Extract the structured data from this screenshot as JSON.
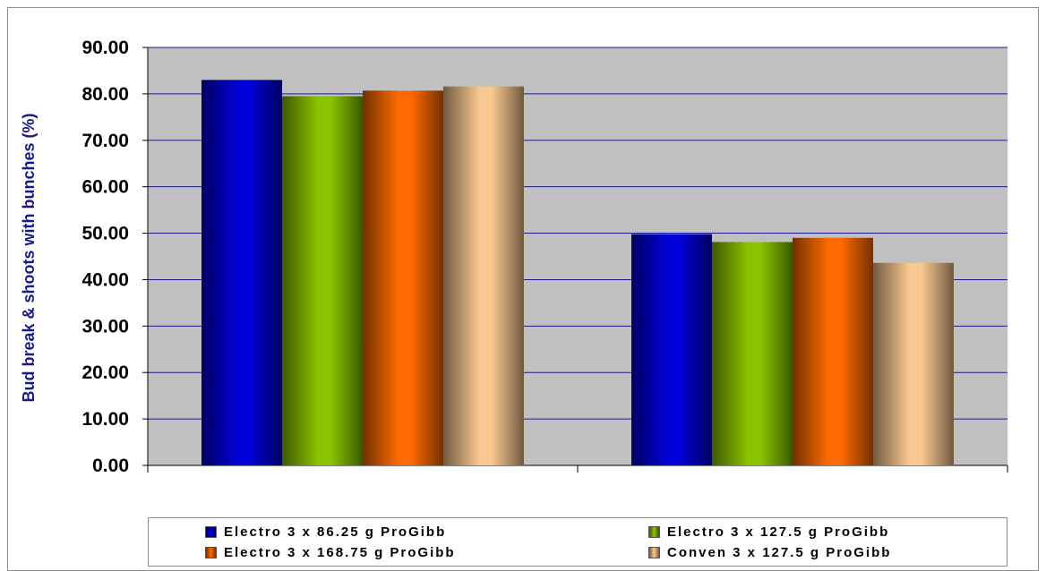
{
  "chart_data": {
    "type": "bar",
    "title": "",
    "xlabel": "",
    "ylabel": "Bud break & shoots with bunches (%)",
    "ylim": [
      0,
      90
    ],
    "yticks": [
      "0.00",
      "10.00",
      "20.00",
      "30.00",
      "40.00",
      "50.00",
      "60.00",
      "70.00",
      "80.00",
      "90.00"
    ],
    "grid": true,
    "legend_position": "bottom",
    "categories": [
      "",
      ""
    ],
    "series": [
      {
        "name": "Electro 3 x 86.25 g ProGibb",
        "values": [
          83.0,
          49.8
        ],
        "color": "#0000d8"
      },
      {
        "name": "Electro 3 x 127.5 g ProGibb",
        "values": [
          79.5,
          48.1
        ],
        "color": "#8ac400"
      },
      {
        "name": "Electro 3 x 168.75 g ProGibb",
        "values": [
          80.7,
          49.0
        ],
        "color": "#ff6a00"
      },
      {
        "name": "Conven 3 x 127.5 g ProGibb",
        "values": [
          81.6,
          43.6
        ],
        "color": "#f9c890"
      }
    ],
    "plot_background": "#c0c0c0",
    "gridline_color": "#1a1a8c"
  }
}
